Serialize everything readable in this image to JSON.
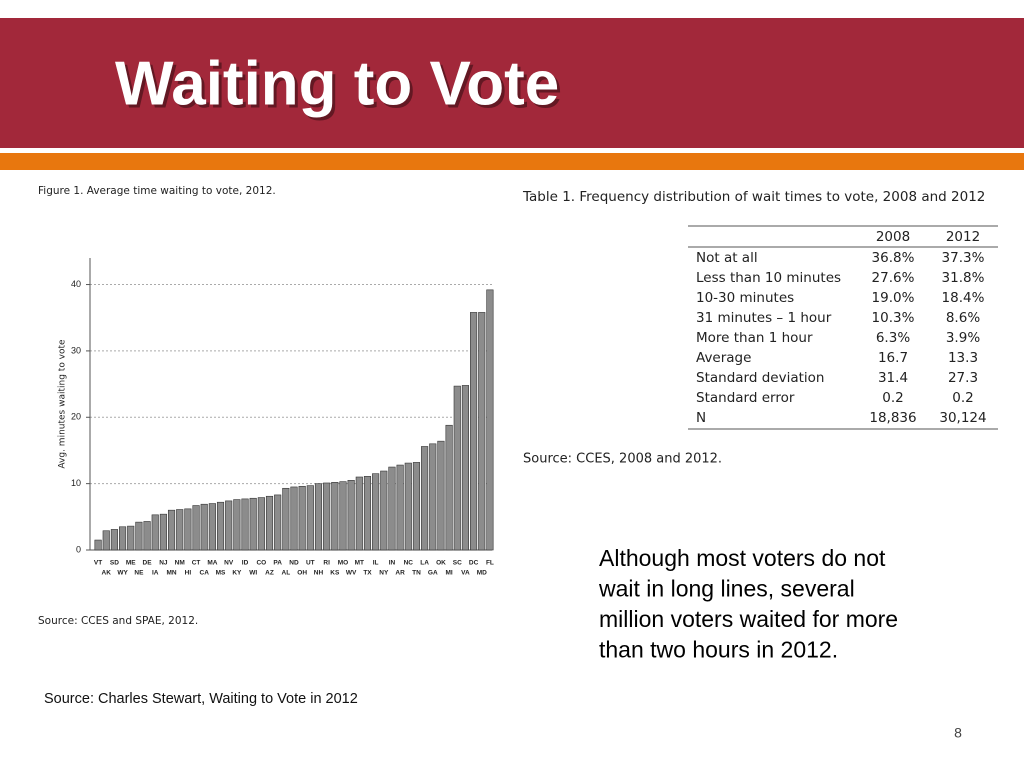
{
  "header": {
    "title": "Waiting to Vote"
  },
  "chart_data": {
    "type": "bar",
    "title": "Figure 1.  Average time waiting to vote, 2012.",
    "y_label": "Avg. minutes waiting to vote",
    "categories": [
      "VT",
      "AK",
      "SD",
      "WY",
      "ME",
      "NE",
      "DE",
      "IA",
      "NJ",
      "MN",
      "NM",
      "HI",
      "CT",
      "CA",
      "MA",
      "MS",
      "NV",
      "KY",
      "ID",
      "WI",
      "CO",
      "AZ",
      "PA",
      "AL",
      "ND",
      "OH",
      "UT",
      "NH",
      "RI",
      "KS",
      "MO",
      "WV",
      "MT",
      "TX",
      "IL",
      "NY",
      "IN",
      "AR",
      "NC",
      "TN",
      "LA",
      "GA",
      "OK",
      "MI",
      "SC",
      "VA",
      "DC",
      "MD",
      "FL"
    ],
    "values": [
      1.5,
      2.9,
      3.1,
      3.5,
      3.6,
      4.2,
      4.3,
      5.3,
      5.4,
      6.0,
      6.1,
      6.2,
      6.7,
      6.9,
      7.0,
      7.2,
      7.4,
      7.6,
      7.7,
      7.8,
      7.9,
      8.1,
      8.3,
      9.3,
      9.5,
      9.6,
      9.7,
      10.0,
      10.1,
      10.2,
      10.3,
      10.5,
      11.0,
      11.1,
      11.5,
      11.9,
      12.5,
      12.8,
      13.1,
      13.2,
      15.6,
      16.0,
      16.4,
      18.8,
      24.7,
      24.8,
      35.8,
      35.8,
      39.2
    ],
    "color": "#8c8c8c",
    "ylim": [
      0,
      44
    ],
    "yticks": [
      0,
      10,
      20,
      30,
      40
    ],
    "grid": true,
    "source": "Source:  CCES and SPAE, 2012."
  },
  "table": {
    "title": "Table 1.  Frequency distribution of wait times to vote, 2008 and 2012",
    "columns": [
      "2008",
      "2012"
    ],
    "rows": [
      {
        "label": "Not at all",
        "values": [
          "36.8%",
          "37.3%"
        ]
      },
      {
        "label": "Less than 10 minutes",
        "values": [
          "27.6%",
          "31.8%"
        ]
      },
      {
        "label": "10-30 minutes",
        "values": [
          "19.0%",
          "18.4%"
        ]
      },
      {
        "label": "31 minutes – 1 hour",
        "values": [
          "10.3%",
          "8.6%"
        ]
      },
      {
        "label": "More than 1 hour",
        "values": [
          "6.3%",
          "3.9%"
        ]
      },
      {
        "label": "Average",
        "values": [
          "16.7",
          "13.3"
        ]
      },
      {
        "label": "Standard deviation",
        "values": [
          "31.4",
          "27.3"
        ]
      },
      {
        "label": "Standard error",
        "values": [
          "0.2",
          "0.2"
        ]
      },
      {
        "label": "N",
        "values": [
          "18,836",
          "30,124"
        ]
      }
    ],
    "source": "Source:  CCES, 2008 and 2012."
  },
  "note": [
    "Although most voters do not",
    "wait in long lines, several",
    "million voters waited  for more",
    "than two hours in 2012."
  ],
  "footer": {
    "source": "Source: Charles Stewart, Waiting to Vote in 2012",
    "page": "8"
  }
}
